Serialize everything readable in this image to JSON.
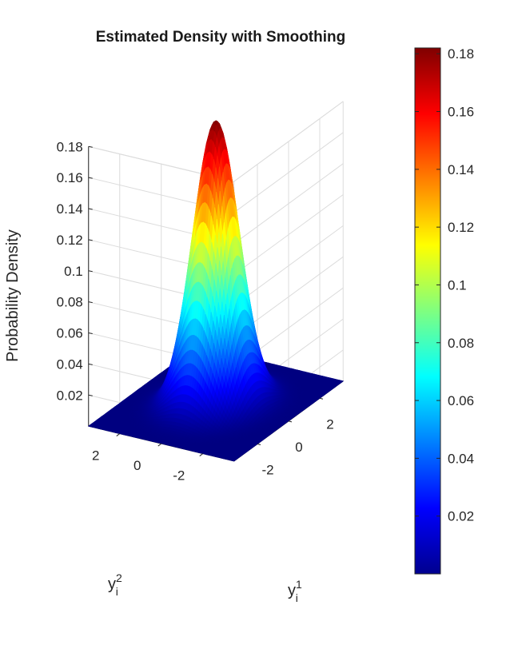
{
  "chart_data": {
    "type": "surface",
    "title": "Estimated Density with Smoothing",
    "zlabel": "Probability Density",
    "xlabel": {
      "base": "y",
      "sub": "i",
      "sup": "1"
    },
    "ylabel": {
      "base": "y",
      "sub": "i",
      "sup": "2"
    },
    "xlim": [
      -3.5,
      3.5
    ],
    "ylim": [
      -3.5,
      3.5
    ],
    "zlim": [
      0,
      0.18
    ],
    "x_ticks": [
      "-2",
      "0",
      "2"
    ],
    "y_ticks": [
      "-2",
      "0",
      "2"
    ],
    "z_ticks": [
      "0.02",
      "0.04",
      "0.06",
      "0.08",
      "0.1",
      "0.12",
      "0.14",
      "0.16",
      "0.18"
    ],
    "colormap": "jet",
    "colorbar": {
      "range": [
        0,
        0.182
      ],
      "ticks": [
        "0.02",
        "0.04",
        "0.06",
        "0.08",
        "0.1",
        "0.12",
        "0.14",
        "0.16",
        "0.18"
      ]
    },
    "surface": {
      "shape": "bivariate gaussian",
      "peak": 0.182,
      "center": [
        0,
        0
      ],
      "sigma": 0.9
    },
    "grid": true
  }
}
